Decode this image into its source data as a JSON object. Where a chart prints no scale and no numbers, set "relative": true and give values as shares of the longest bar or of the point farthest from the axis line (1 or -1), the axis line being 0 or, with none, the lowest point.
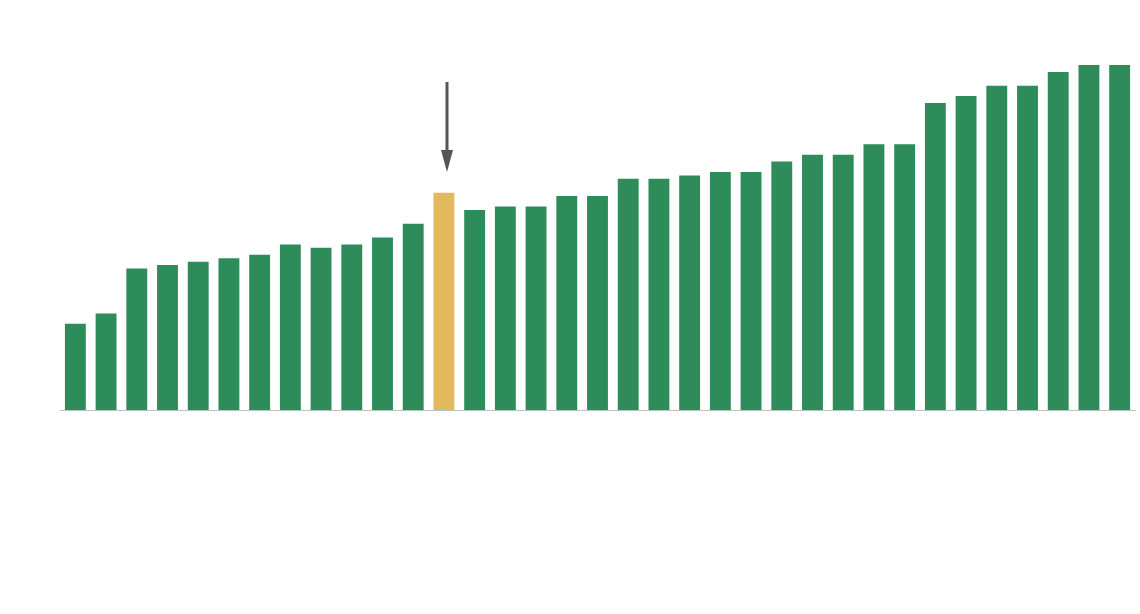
{
  "chart_data": {
    "type": "bar",
    "relative": true,
    "categories": [
      null,
      null,
      null,
      null,
      null,
      null,
      null,
      null,
      null,
      null,
      null,
      null,
      null,
      null,
      null,
      null,
      null,
      null,
      null,
      null,
      null,
      null,
      null,
      null,
      null,
      null,
      null,
      null,
      null,
      null,
      null,
      null,
      null,
      null,
      null
    ],
    "values": [
      0.25,
      0.28,
      0.41,
      0.42,
      0.43,
      0.44,
      0.45,
      0.48,
      0.47,
      0.48,
      0.5,
      0.54,
      0.63,
      0.58,
      0.59,
      0.59,
      0.62,
      0.62,
      0.67,
      0.67,
      0.68,
      0.69,
      0.69,
      0.72,
      0.74,
      0.74,
      0.77,
      0.77,
      0.89,
      0.91,
      0.94,
      0.94,
      0.98,
      1.0,
      1.0
    ],
    "colors": [
      "#2e8b5a",
      "#2e8b5a",
      "#2e8b5a",
      "#2e8b5a",
      "#2e8b5a",
      "#2e8b5a",
      "#2e8b5a",
      "#2e8b5a",
      "#2e8b5a",
      "#2e8b5a",
      "#2e8b5a",
      "#2e8b5a",
      "#e3b95e",
      "#2e8b5a",
      "#2e8b5a",
      "#2e8b5a",
      "#2e8b5a",
      "#2e8b5a",
      "#2e8b5a",
      "#2e8b5a",
      "#2e8b5a",
      "#2e8b5a",
      "#2e8b5a",
      "#2e8b5a",
      "#2e8b5a",
      "#2e8b5a",
      "#2e8b5a",
      "#2e8b5a",
      "#2e8b5a",
      "#2e8b5a",
      "#2e8b5a",
      "#2e8b5a",
      "#2e8b5a",
      "#2e8b5a",
      "#2e8b5a"
    ]
  }
}
